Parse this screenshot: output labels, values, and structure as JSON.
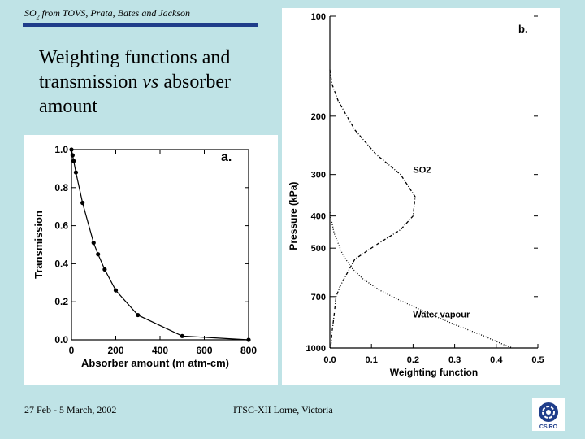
{
  "header": {
    "text_prefix": "SO",
    "text_sub": "2",
    "text_suffix": " from TOVS, Prata, Bates and Jackson"
  },
  "title_lines": [
    "Weighting functions and",
    "transmission ",
    "vs",
    " absorber",
    "amount"
  ],
  "footer": {
    "date": "27 Feb - 5 March, 2002",
    "venue": "ITSC-XII Lorne, Victoria"
  },
  "logo": {
    "icon": "csiro-logo",
    "text": "CSIRO"
  },
  "chart_data": [
    {
      "type": "line",
      "panel_label": "a.",
      "xlabel": "Absorber amount (m atm-cm)",
      "ylabel": "Transmission",
      "xlim": [
        0,
        800
      ],
      "ylim": [
        0,
        1.0
      ],
      "xticks": [
        "0",
        "200",
        "400",
        "600",
        "800"
      ],
      "yticks": [
        "0.0",
        "0.2",
        "0.4",
        "0.6",
        "0.8",
        "1.0"
      ],
      "x": [
        0,
        5,
        10,
        20,
        50,
        100,
        120,
        150,
        200,
        300,
        500,
        800
      ],
      "values": [
        1.0,
        0.97,
        0.94,
        0.88,
        0.72,
        0.51,
        0.45,
        0.37,
        0.26,
        0.13,
        0.02,
        0.0
      ]
    },
    {
      "type": "line",
      "panel_label": "b.",
      "xlabel": "Weighting function",
      "ylabel": "Pressure (kPa)",
      "xlim": [
        0,
        0.5
      ],
      "ylim": [
        100,
        1000
      ],
      "yscale": "log",
      "xticks": [
        "0.0",
        "0.1",
        "0.2",
        "0.3",
        "0.4",
        "0.5"
      ],
      "yticks": [
        "100",
        "200",
        "300",
        "400",
        "500",
        "700",
        "1000"
      ],
      "series": [
        {
          "name": "SO2",
          "x": [
            0.0,
            0.005,
            0.02,
            0.06,
            0.11,
            0.17,
            0.205,
            0.2,
            0.17,
            0.11,
            0.06,
            0.04,
            0.025,
            0.015,
            0.01,
            0.005,
            0.002
          ],
          "y": [
            145,
            160,
            180,
            220,
            260,
            300,
            350,
            400,
            440,
            490,
            540,
            600,
            650,
            700,
            800,
            900,
            1000
          ]
        },
        {
          "name": "Water vapour",
          "x": [
            0.0,
            0.01,
            0.03,
            0.05,
            0.08,
            0.12,
            0.17,
            0.23,
            0.3,
            0.37,
            0.42,
            0.44
          ],
          "y": [
            390,
            450,
            520,
            570,
            620,
            670,
            720,
            780,
            850,
            920,
            980,
            1000
          ]
        }
      ]
    }
  ]
}
